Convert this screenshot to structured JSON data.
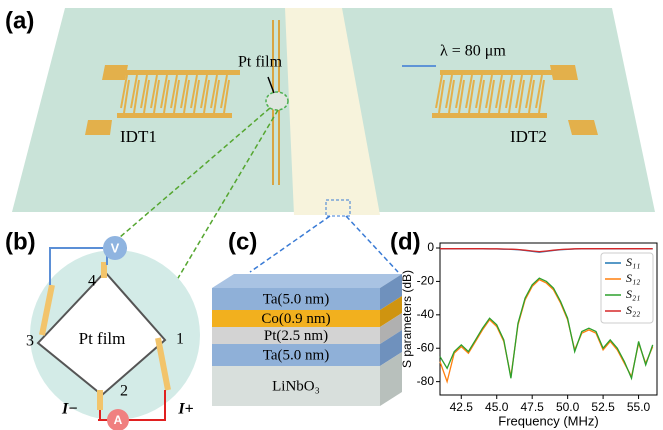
{
  "panel_a": {
    "label": "(a)",
    "pt_film": "Pt film",
    "wavelength": "λ = 80 μm",
    "idt1": "IDT1",
    "idt2": "IDT2"
  },
  "panel_b": {
    "label": "(b)",
    "voltmeter": "V",
    "ammeter": "A",
    "terminal_top": "4",
    "terminal_left": "3",
    "terminal_right": "1",
    "terminal_bottom": "2",
    "film": "Pt film",
    "current_minus": "I−",
    "current_plus": "I+"
  },
  "panel_c": {
    "label": "(c)",
    "layers": [
      "Ta(5.0 nm)",
      "Co(0.9 nm)",
      "Pt(2.5 nm)",
      "Ta(5.0 nm)",
      "LiNbO₃"
    ]
  },
  "chart_data": {
    "type": "line",
    "panel_label": "(d)",
    "xlabel": "Frequency (MHz)",
    "ylabel": "S parameters (dB)",
    "x": [
      41,
      41.5,
      42,
      42.5,
      43,
      43.5,
      44,
      44.5,
      45,
      45.5,
      46,
      46.5,
      47,
      47.5,
      48,
      48.5,
      49,
      49.5,
      50,
      50.5,
      51,
      51.5,
      52,
      52.5,
      53,
      53.5,
      54,
      54.5,
      55,
      55.5,
      56
    ],
    "series": [
      {
        "name": "S₁₁",
        "color": "#1f77b4",
        "values": [
          -0.5,
          -0.5,
          -0.5,
          -0.5,
          -0.5,
          -0.5,
          -0.5,
          -0.6,
          -0.6,
          -0.7,
          -0.8,
          -1,
          -1.5,
          -2,
          -2.5,
          -2,
          -1.5,
          -1,
          -0.8,
          -0.6,
          -0.5,
          -0.5,
          -0.5,
          -0.5,
          -0.5,
          -0.5,
          -0.5,
          -0.5,
          -0.5,
          -0.5,
          -0.5
        ]
      },
      {
        "name": "S₁₂",
        "color": "#ff7f0e",
        "values": [
          -68,
          -80,
          -63,
          -59,
          -63,
          -56,
          -49,
          -43,
          -47,
          -56,
          -77,
          -46,
          -31,
          -23,
          -19,
          -21,
          -25,
          -33,
          -43,
          -61,
          -51,
          -49,
          -51,
          -61,
          -56,
          -61,
          -69,
          -77,
          -57,
          -69,
          -59
        ]
      },
      {
        "name": "S₂₁",
        "color": "#2ca02c",
        "values": [
          -65,
          -72,
          -62,
          -58,
          -62,
          -55,
          -48,
          -42,
          -46,
          -55,
          -78,
          -45,
          -30,
          -22,
          -18,
          -20,
          -24,
          -32,
          -42,
          -62,
          -50,
          -48,
          -50,
          -60,
          -55,
          -60,
          -68,
          -78,
          -56,
          -70,
          -58
        ]
      },
      {
        "name": "S₂₂",
        "color": "#d62728",
        "values": [
          -0.4,
          -0.4,
          -0.4,
          -0.4,
          -0.4,
          -0.4,
          -0.4,
          -0.5,
          -0.5,
          -0.6,
          -0.7,
          -0.9,
          -1.3,
          -1.8,
          -2.2,
          -1.8,
          -1.3,
          -0.9,
          -0.7,
          -0.5,
          -0.4,
          -0.4,
          -0.4,
          -0.4,
          -0.4,
          -0.4,
          -0.4,
          -0.4,
          -0.4,
          -0.4,
          -0.4
        ]
      }
    ],
    "xlim": [
      41,
      56.3
    ],
    "ylim": [
      -88,
      3
    ],
    "xticks": [
      {
        "value": 42.5,
        "label": "42.5"
      },
      {
        "value": 45,
        "label": "45.0"
      },
      {
        "value": 47.5,
        "label": "47.5"
      },
      {
        "value": 50,
        "label": "50.0"
      },
      {
        "value": 52.5,
        "label": "52.5"
      },
      {
        "value": 55,
        "label": "55.0"
      }
    ],
    "yticks": [
      0,
      -20,
      -40,
      -60,
      -80
    ],
    "legend": "upper right"
  }
}
